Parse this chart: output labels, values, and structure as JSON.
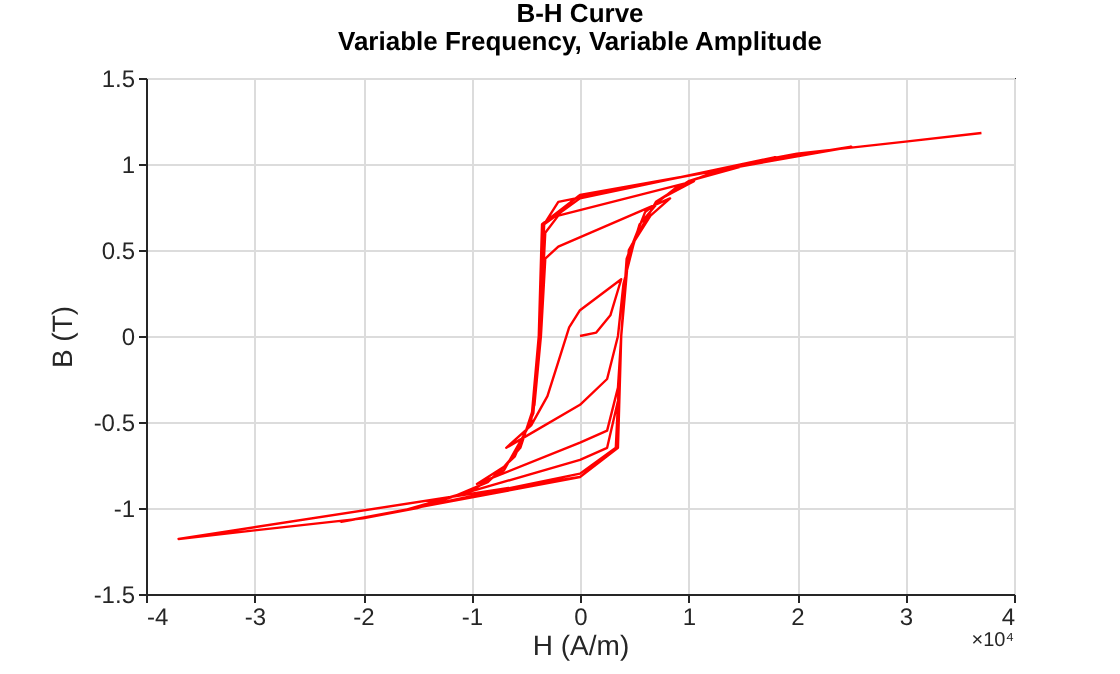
{
  "chart_data": {
    "type": "line",
    "title": "B-H Curve",
    "subtitle": "Variable Frequency,  Variable Amplitude",
    "xlabel": "H (A/m)",
    "ylabel": "B (T)",
    "annotations": [
      "×10⁴"
    ],
    "xlim": [
      -4,
      4
    ],
    "xticks": [
      -4,
      -3,
      -2,
      -1,
      0,
      1,
      2,
      3,
      4
    ],
    "ylim": [
      -1.5,
      1.5
    ],
    "yticks": [
      -1.5,
      -1,
      -0.5,
      0,
      0.5,
      1,
      1.5
    ],
    "grid": true,
    "series": [
      {
        "color": "#ff0000",
        "x": [
          0,
          0.15,
          0.28,
          0.38,
          0,
          -0.1,
          -0.2,
          -0.3,
          -0.45,
          -0.68,
          0,
          0.25,
          0.35,
          0.4,
          0.5,
          0.65,
          0.83,
          -0.2,
          -0.32,
          -0.36,
          -0.42,
          -0.55,
          -0.7,
          -0.95,
          0,
          0.25,
          0.35,
          0.38,
          0.43,
          0.55,
          0.75,
          1.05,
          -0.2,
          -0.32,
          -0.37,
          -0.43,
          -0.6,
          -0.85,
          -1.15,
          0,
          0.25,
          0.36,
          0.38,
          0.43,
          0.6,
          0.9,
          1.3,
          -0.2,
          -0.33,
          -0.38,
          -0.45,
          -0.7,
          -1,
          -1.6,
          0,
          0.33,
          0.38,
          0.45,
          0.7,
          1,
          1.8,
          0,
          -0.33,
          -0.38,
          -0.45,
          -0.7,
          -1,
          -1.5,
          -2.2,
          0,
          0.34,
          0.38,
          0.45,
          0.7,
          1,
          1.5,
          2.5,
          0,
          -0.35,
          -0.38,
          -0.45,
          -0.7,
          -1,
          -1.5,
          -2,
          -3,
          -3.7,
          0,
          0.35,
          0.38,
          0.45,
          0.7,
          1,
          1.5,
          2,
          3,
          3.7
        ],
        "values": [
          0,
          0.02,
          0.12,
          0.33,
          0.15,
          0.05,
          -0.15,
          -0.35,
          -0.52,
          -0.65,
          -0.4,
          -0.25,
          0,
          0.3,
          0.55,
          0.7,
          0.8,
          0.52,
          0.45,
          0,
          -0.4,
          -0.65,
          -0.76,
          -0.86,
          -0.62,
          -0.55,
          -0.3,
          0,
          0.4,
          0.65,
          0.8,
          0.9,
          0.7,
          0.6,
          0,
          -0.45,
          -0.7,
          -0.85,
          -0.93,
          -0.72,
          -0.65,
          -0.35,
          0,
          0.45,
          0.72,
          0.87,
          0.97,
          0.78,
          0.65,
          0,
          -0.5,
          -0.78,
          -0.9,
          -1.01,
          -0.8,
          -0.65,
          0,
          0.5,
          0.78,
          0.9,
          1.04,
          0.8,
          0.65,
          0,
          -0.5,
          -0.78,
          -0.9,
          -1,
          -1.08,
          -0.82,
          -0.65,
          0,
          0.5,
          0.78,
          0.9,
          1,
          1.1,
          0.82,
          0.65,
          0,
          -0.5,
          -0.78,
          -0.9,
          -1,
          -1.06,
          -1.13,
          -1.18,
          -0.82,
          -0.65,
          0,
          0.5,
          0.78,
          0.9,
          1,
          1.06,
          1.13,
          1.18
        ]
      }
    ]
  }
}
